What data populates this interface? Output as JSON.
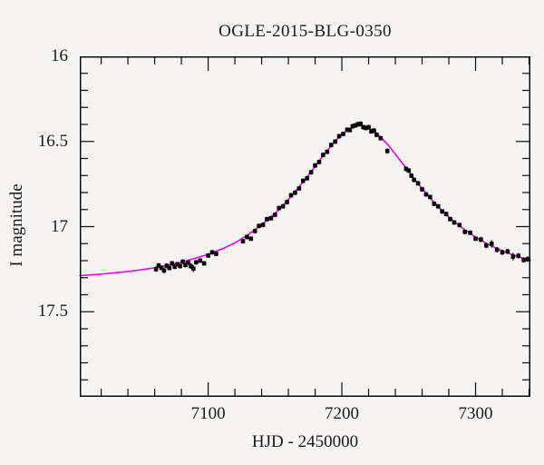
{
  "title": "OGLE-2015-BLG-0350",
  "x_axis": {
    "label": "HJD - 2450000",
    "tick_labels": [
      "7100",
      "7200",
      "7300"
    ]
  },
  "y_axis": {
    "label": "I magnitude",
    "tick_labels": [
      "16",
      "16.5",
      "17",
      "17.5"
    ]
  },
  "colors": {
    "background": "#f5f4f2",
    "frame": "#0d0d0d",
    "text": "#1a1a1a",
    "model_line": "#ee00ee",
    "data_points": "#0a0a0a"
  },
  "chart_data": {
    "type": "scatter",
    "title": "OGLE-2015-BLG-0350",
    "xlabel": "HJD - 2450000",
    "ylabel": "I magnitude",
    "xlim": [
      7004,
      7341
    ],
    "ylim": [
      18.0,
      16.0
    ],
    "y_axis_inverted": true,
    "grid": false,
    "legend": false,
    "x_major_ticks": [
      7100,
      7200,
      7300
    ],
    "x_minor_tick_step": 20,
    "y_major_ticks": [
      16.5,
      17.0,
      17.5
    ],
    "y_minor_tick_step": 0.1,
    "series": [
      {
        "name": "model-curve",
        "type": "line",
        "color": "#ee00ee",
        "points": [
          [
            7004,
            17.288
          ],
          [
            7020,
            17.279
          ],
          [
            7040,
            17.264
          ],
          [
            7060,
            17.242
          ],
          [
            7080,
            17.21
          ],
          [
            7100,
            17.163
          ],
          [
            7110,
            17.132
          ],
          [
            7120,
            17.096
          ],
          [
            7130,
            17.047
          ],
          [
            7140,
            16.989
          ],
          [
            7150,
            16.922
          ],
          [
            7155,
            16.884
          ],
          [
            7160,
            16.841
          ],
          [
            7165,
            16.796
          ],
          [
            7170,
            16.748
          ],
          [
            7175,
            16.698
          ],
          [
            7180,
            16.646
          ],
          [
            7185,
            16.594
          ],
          [
            7190,
            16.545
          ],
          [
            7195,
            16.497
          ],
          [
            7200,
            16.459
          ],
          [
            7205,
            16.43
          ],
          [
            7210,
            16.412
          ],
          [
            7213.5,
            16.407
          ],
          [
            7217,
            16.412
          ],
          [
            7220,
            16.421
          ],
          [
            7225,
            16.446
          ],
          [
            7230,
            16.482
          ],
          [
            7235,
            16.525
          ],
          [
            7240,
            16.574
          ],
          [
            7245,
            16.625
          ],
          [
            7250,
            16.677
          ],
          [
            7260,
            16.777
          ],
          [
            7270,
            16.867
          ],
          [
            7280,
            16.944
          ],
          [
            7290,
            17.008
          ],
          [
            7300,
            17.062
          ],
          [
            7310,
            17.106
          ],
          [
            7320,
            17.143
          ],
          [
            7330,
            17.172
          ],
          [
            7341,
            17.198
          ]
        ]
      },
      {
        "name": "observations",
        "type": "scatter-errorbar",
        "marker": "square",
        "color": "#0a0a0a",
        "points_format": [
          "hjd_minus_2450000",
          "i_magnitude",
          "error"
        ],
        "points": [
          [
            7061,
            17.25,
            0.016
          ],
          [
            7063,
            17.228,
            0.014
          ],
          [
            7065,
            17.242,
            0.014
          ],
          [
            7067,
            17.258,
            0.016
          ],
          [
            7069,
            17.23,
            0.014
          ],
          [
            7071,
            17.243,
            0.014
          ],
          [
            7073,
            17.216,
            0.014
          ],
          [
            7075,
            17.236,
            0.014
          ],
          [
            7077,
            17.221,
            0.014
          ],
          [
            7079,
            17.232,
            0.014
          ],
          [
            7081,
            17.206,
            0.014
          ],
          [
            7083,
            17.226,
            0.014
          ],
          [
            7085,
            17.211,
            0.014
          ],
          [
            7087,
            17.232,
            0.016
          ],
          [
            7089,
            17.247,
            0.02
          ],
          [
            7091,
            17.21,
            0.014
          ],
          [
            7094,
            17.2,
            0.014
          ],
          [
            7097,
            17.216,
            0.014
          ],
          [
            7100,
            17.17,
            0.014
          ],
          [
            7103,
            17.151,
            0.014
          ],
          [
            7106,
            17.16,
            0.014
          ],
          [
            7126,
            17.086,
            0.014
          ],
          [
            7129,
            17.061,
            0.014
          ],
          [
            7132,
            17.071,
            0.014
          ],
          [
            7135,
            17.026,
            0.014
          ],
          [
            7138,
            16.996,
            0.014
          ],
          [
            7141,
            16.99,
            0.014
          ],
          [
            7144,
            16.956,
            0.014
          ],
          [
            7147,
            16.951,
            0.014
          ],
          [
            7150,
            16.931,
            0.014
          ],
          [
            7153,
            16.891,
            0.014
          ],
          [
            7156,
            16.881,
            0.014
          ],
          [
            7159,
            16.856,
            0.014
          ],
          [
            7162,
            16.816,
            0.014
          ],
          [
            7165,
            16.801,
            0.014
          ],
          [
            7168,
            16.776,
            0.014
          ],
          [
            7171,
            16.731,
            0.014
          ],
          [
            7174,
            16.716,
            0.014
          ],
          [
            7177,
            16.681,
            0.014
          ],
          [
            7180,
            16.641,
            0.014
          ],
          [
            7183,
            16.621,
            0.014
          ],
          [
            7186,
            16.579,
            0.014
          ],
          [
            7189,
            16.561,
            0.014
          ],
          [
            7192,
            16.521,
            0.014
          ],
          [
            7195,
            16.501,
            0.014
          ],
          [
            7198,
            16.469,
            0.014
          ],
          [
            7201,
            16.456,
            0.014
          ],
          [
            7204,
            16.431,
            0.014
          ],
          [
            7206,
            16.433,
            0.014
          ],
          [
            7208,
            16.411,
            0.014
          ],
          [
            7210,
            16.406,
            0.014
          ],
          [
            7212,
            16.399,
            0.014
          ],
          [
            7214,
            16.396,
            0.014
          ],
          [
            7216,
            16.416,
            0.014
          ],
          [
            7218,
            16.421,
            0.014
          ],
          [
            7220,
            16.416,
            0.014
          ],
          [
            7222,
            16.441,
            0.014
          ],
          [
            7224,
            16.436,
            0.014
          ],
          [
            7226,
            16.461,
            0.014
          ],
          [
            7229,
            16.481,
            0.014
          ],
          [
            7234,
            16.556,
            0.016
          ],
          [
            7248,
            16.661,
            0.014
          ],
          [
            7250,
            16.671,
            0.014
          ],
          [
            7252,
            16.701,
            0.014
          ],
          [
            7254,
            16.726,
            0.014
          ],
          [
            7257,
            16.746,
            0.014
          ],
          [
            7260,
            16.781,
            0.014
          ],
          [
            7263,
            16.811,
            0.014
          ],
          [
            7266,
            16.826,
            0.014
          ],
          [
            7269,
            16.866,
            0.014
          ],
          [
            7272,
            16.881,
            0.014
          ],
          [
            7275,
            16.911,
            0.014
          ],
          [
            7278,
            16.926,
            0.014
          ],
          [
            7281,
            16.956,
            0.014
          ],
          [
            7284,
            16.976,
            0.014
          ],
          [
            7288,
            16.991,
            0.014
          ],
          [
            7292,
            17.031,
            0.014
          ],
          [
            7296,
            17.036,
            0.014
          ],
          [
            7300,
            17.071,
            0.014
          ],
          [
            7304,
            17.076,
            0.016
          ],
          [
            7308,
            17.111,
            0.016
          ],
          [
            7312,
            17.101,
            0.022
          ],
          [
            7316,
            17.136,
            0.016
          ],
          [
            7320,
            17.151,
            0.016
          ],
          [
            7324,
            17.146,
            0.016
          ],
          [
            7328,
            17.176,
            0.022
          ],
          [
            7332,
            17.171,
            0.016
          ],
          [
            7336,
            17.196,
            0.016
          ],
          [
            7339,
            17.191,
            0.016
          ]
        ]
      }
    ]
  }
}
